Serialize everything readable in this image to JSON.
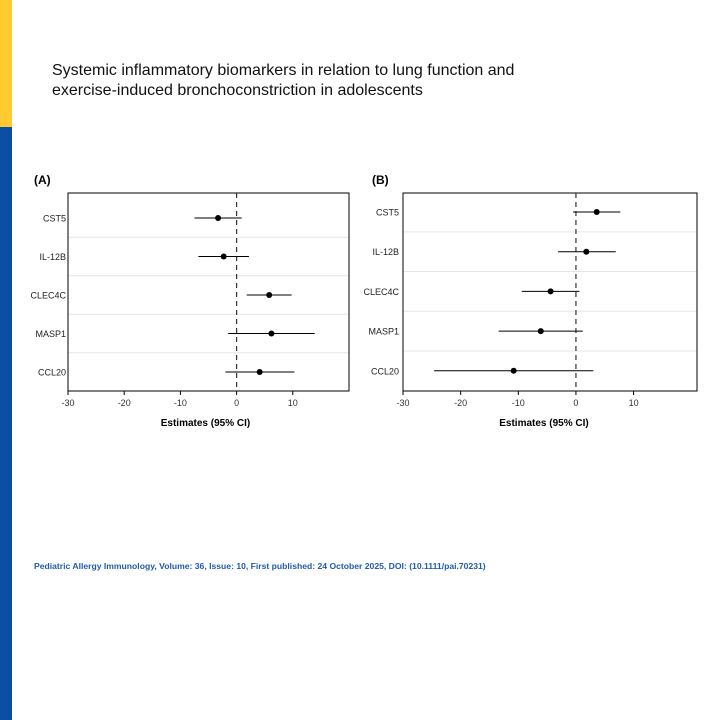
{
  "slide": {
    "title_line1": "Systemic inflammatory biomarkers in relation to lung function and",
    "title_line2": "exercise-induced bronchoconstriction in adolescents",
    "citation": "Pediatric Allergy Immunology, Volume: 36, Issue: 10, First published: 24 October 2025, DOI: (10.1111/pai.70231)",
    "colors": {
      "accent_yellow": "#FFCB31",
      "accent_blue": "#0B4EA2",
      "citation_blue": "#1F5CAB"
    }
  },
  "chart_data": [
    {
      "type": "scatter",
      "panel_label": "(A)",
      "title": "",
      "xlabel": "Estimates (95% CI)",
      "ylabel": "",
      "xlim": [
        -30,
        20
      ],
      "xticks": [
        -30,
        -20,
        -10,
        0,
        10
      ],
      "reference_line": 0,
      "grid": true,
      "categories": [
        "CST5",
        "IL-12B",
        "CLEC4C",
        "MASP1",
        "CCL20"
      ],
      "estimates": [
        -3.3,
        -2.3,
        5.8,
        6.2,
        4.1
      ],
      "ci_lower": [
        -7.5,
        -6.8,
        1.8,
        -1.5,
        -2.0
      ],
      "ci_upper": [
        0.9,
        2.2,
        9.8,
        13.9,
        10.3
      ]
    },
    {
      "type": "scatter",
      "panel_label": "(B)",
      "title": "",
      "xlabel": "Estimates (95% CI)",
      "ylabel": "",
      "xlim": [
        -30,
        21
      ],
      "xticks": [
        -30,
        -20,
        -10,
        0,
        10
      ],
      "reference_line": 0,
      "grid": true,
      "categories": [
        "CST5",
        "IL-12B",
        "CLEC4C",
        "MASP1",
        "CCL20"
      ],
      "estimates": [
        3.6,
        1.8,
        -4.4,
        -6.1,
        -10.8
      ],
      "ci_lower": [
        -0.5,
        -3.1,
        -9.4,
        -13.4,
        -24.6
      ],
      "ci_upper": [
        7.7,
        6.9,
        0.6,
        1.2,
        3.0
      ]
    }
  ]
}
